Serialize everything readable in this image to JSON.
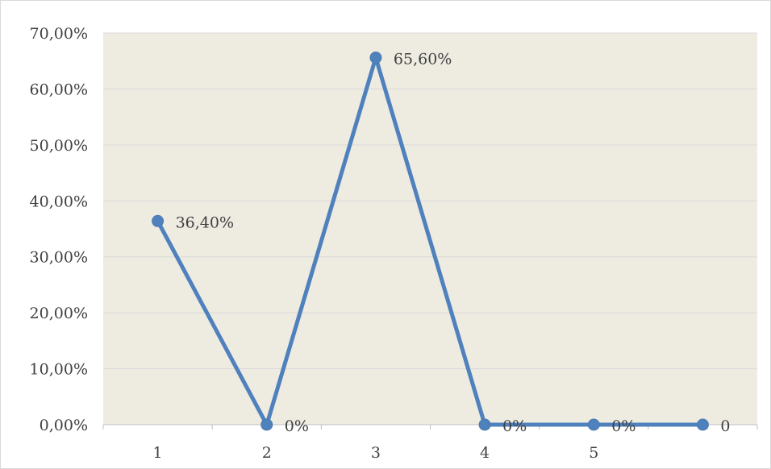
{
  "chart_data": {
    "type": "line",
    "title": "",
    "xlabel": "",
    "ylabel": "",
    "x": [
      "1",
      "2",
      "3",
      "4",
      "5",
      ""
    ],
    "ylim": [
      0,
      70
    ],
    "y_ticks": [
      0,
      10,
      20,
      30,
      40,
      50,
      60,
      70
    ],
    "y_tick_labels": [
      "0,00%",
      "10,00%",
      "20,00%",
      "30,00%",
      "40,00%",
      "50,00%",
      "60,00%",
      "70,00%"
    ],
    "grid": true,
    "legend": "none",
    "series": [
      {
        "values": [
          36.4,
          0,
          65.6,
          0,
          0,
          0
        ],
        "data_labels": [
          "36,40%",
          "0%",
          "65,60%",
          "0%",
          "0%",
          "0"
        ],
        "color": "#4f81bd"
      }
    ],
    "plot_background": "#eeebe1",
    "grid_color": "#d9d9d9"
  }
}
